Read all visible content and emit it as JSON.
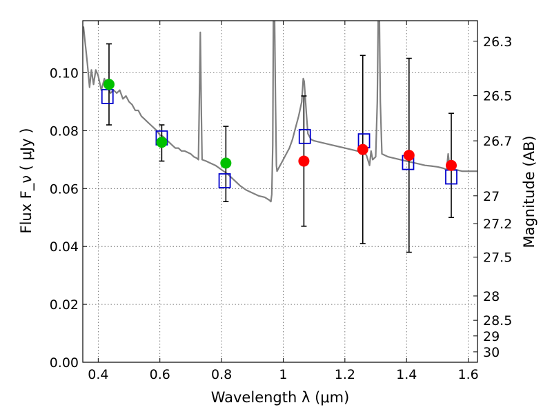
{
  "chart_data": {
    "type": "scatter",
    "xlabel": "Wavelength  λ (μm)",
    "ylabel": "Flux  F_ν ( μJy )",
    "ylabel_right": "Magnitude (AB)",
    "xlim": [
      0.35,
      1.63
    ],
    "ylim": [
      0.0,
      0.118
    ],
    "grid": true,
    "x_ticks": [
      {
        "value": 0.4,
        "label": "0.4"
      },
      {
        "value": 0.6,
        "label": "0.6"
      },
      {
        "value": 0.8,
        "label": "0.8"
      },
      {
        "value": 1.0,
        "label": "1"
      },
      {
        "value": 1.2,
        "label": "1.2"
      },
      {
        "value": 1.4,
        "label": "1.4"
      },
      {
        "value": 1.6,
        "label": "1.6"
      }
    ],
    "y_ticks": [
      {
        "value": 0.0,
        "label": "0.00"
      },
      {
        "value": 0.02,
        "label": "0.02"
      },
      {
        "value": 0.04,
        "label": "0.04"
      },
      {
        "value": 0.06,
        "label": "0.06"
      },
      {
        "value": 0.08,
        "label": "0.08"
      },
      {
        "value": 0.1,
        "label": "0.10"
      }
    ],
    "right_ticks": [
      {
        "flux": 0.1109,
        "label": "26.3"
      },
      {
        "flux": 0.0921,
        "label": "26.5"
      },
      {
        "flux": 0.0765,
        "label": "26.7"
      },
      {
        "flux": 0.0575,
        "label": "27"
      },
      {
        "flux": 0.0479,
        "label": "27.2"
      },
      {
        "flux": 0.0363,
        "label": "27.5"
      },
      {
        "flux": 0.0229,
        "label": "28"
      },
      {
        "flux": 0.0145,
        "label": "28.5"
      },
      {
        "flux": 0.0091,
        "label": "29"
      },
      {
        "flux": 0.0036,
        "label": "30"
      }
    ],
    "series": [
      {
        "kind": "spectrum",
        "color": "#808080",
        "points": [
          [
            0.352,
            0.116
          ],
          [
            0.36,
            0.108
          ],
          [
            0.365,
            0.103
          ],
          [
            0.372,
            0.095
          ],
          [
            0.378,
            0.101
          ],
          [
            0.385,
            0.096
          ],
          [
            0.392,
            0.101
          ],
          [
            0.4,
            0.099
          ],
          [
            0.41,
            0.094
          ],
          [
            0.42,
            0.098
          ],
          [
            0.43,
            0.095
          ],
          [
            0.44,
            0.093
          ],
          [
            0.45,
            0.094
          ],
          [
            0.46,
            0.093
          ],
          [
            0.47,
            0.094
          ],
          [
            0.48,
            0.091
          ],
          [
            0.49,
            0.092
          ],
          [
            0.5,
            0.09
          ],
          [
            0.51,
            0.089
          ],
          [
            0.52,
            0.087
          ],
          [
            0.53,
            0.087
          ],
          [
            0.54,
            0.085
          ],
          [
            0.55,
            0.084
          ],
          [
            0.56,
            0.083
          ],
          [
            0.57,
            0.082
          ],
          [
            0.58,
            0.081
          ],
          [
            0.59,
            0.08
          ],
          [
            0.6,
            0.0785
          ],
          [
            0.61,
            0.078
          ],
          [
            0.62,
            0.077
          ],
          [
            0.63,
            0.076
          ],
          [
            0.64,
            0.075
          ],
          [
            0.65,
            0.074
          ],
          [
            0.66,
            0.074
          ],
          [
            0.67,
            0.073
          ],
          [
            0.68,
            0.073
          ],
          [
            0.69,
            0.0725
          ],
          [
            0.7,
            0.072
          ],
          [
            0.71,
            0.071
          ],
          [
            0.72,
            0.0705
          ],
          [
            0.725,
            0.07
          ],
          [
            0.728,
            0.09
          ],
          [
            0.731,
            0.114
          ],
          [
            0.734,
            0.09
          ],
          [
            0.737,
            0.07
          ],
          [
            0.75,
            0.0695
          ],
          [
            0.76,
            0.069
          ],
          [
            0.78,
            0.068
          ],
          [
            0.8,
            0.0665
          ],
          [
            0.82,
            0.065
          ],
          [
            0.84,
            0.063
          ],
          [
            0.86,
            0.061
          ],
          [
            0.88,
            0.0595
          ],
          [
            0.9,
            0.0585
          ],
          [
            0.92,
            0.0575
          ],
          [
            0.94,
            0.057
          ],
          [
            0.955,
            0.056
          ],
          [
            0.96,
            0.0555
          ],
          [
            0.963,
            0.058
          ],
          [
            0.966,
            0.075
          ],
          [
            0.968,
            0.118
          ],
          [
            0.972,
            0.118
          ],
          [
            0.975,
            0.09
          ],
          [
            0.978,
            0.068
          ],
          [
            0.98,
            0.066
          ],
          [
            0.99,
            0.068
          ],
          [
            1.0,
            0.07
          ],
          [
            1.01,
            0.072
          ],
          [
            1.02,
            0.074
          ],
          [
            1.03,
            0.077
          ],
          [
            1.04,
            0.081
          ],
          [
            1.05,
            0.085
          ],
          [
            1.06,
            0.09
          ],
          [
            1.065,
            0.098
          ],
          [
            1.068,
            0.097
          ],
          [
            1.075,
            0.086
          ],
          [
            1.08,
            0.079
          ],
          [
            1.09,
            0.077
          ],
          [
            1.1,
            0.0765
          ],
          [
            1.12,
            0.076
          ],
          [
            1.14,
            0.0755
          ],
          [
            1.16,
            0.075
          ],
          [
            1.18,
            0.0745
          ],
          [
            1.2,
            0.074
          ],
          [
            1.22,
            0.0735
          ],
          [
            1.24,
            0.073
          ],
          [
            1.26,
            0.0725
          ],
          [
            1.27,
            0.0715
          ],
          [
            1.28,
            0.068
          ],
          [
            1.285,
            0.073
          ],
          [
            1.29,
            0.07
          ],
          [
            1.3,
            0.071
          ],
          [
            1.305,
            0.09
          ],
          [
            1.308,
            0.118
          ],
          [
            1.312,
            0.118
          ],
          [
            1.315,
            0.09
          ],
          [
            1.32,
            0.072
          ],
          [
            1.34,
            0.071
          ],
          [
            1.36,
            0.0705
          ],
          [
            1.38,
            0.07
          ],
          [
            1.4,
            0.0695
          ],
          [
            1.42,
            0.069
          ],
          [
            1.44,
            0.0685
          ],
          [
            1.46,
            0.068
          ],
          [
            1.48,
            0.0678
          ],
          [
            1.5,
            0.0675
          ],
          [
            1.52,
            0.067
          ],
          [
            1.53,
            0.0665
          ],
          [
            1.535,
            0.072
          ],
          [
            1.54,
            0.067
          ],
          [
            1.56,
            0.0665
          ],
          [
            1.58,
            0.066
          ],
          [
            1.6,
            0.066
          ],
          [
            1.62,
            0.066
          ],
          [
            1.63,
            0.066
          ]
        ]
      },
      {
        "kind": "observed-green",
        "color": "#00c000",
        "points": [
          {
            "x": 0.435,
            "y": 0.096,
            "err_low": 0.082,
            "err_high": 0.11
          },
          {
            "x": 0.606,
            "y": 0.076,
            "err_low": 0.0695,
            "err_high": 0.082
          },
          {
            "x": 0.814,
            "y": 0.0688,
            "err_low": 0.0555,
            "err_high": 0.0815
          }
        ]
      },
      {
        "kind": "observed-red",
        "color": "#ff0000",
        "points": [
          {
            "x": 1.067,
            "y": 0.0695,
            "err_low": 0.047,
            "err_high": 0.092
          },
          {
            "x": 1.258,
            "y": 0.0735,
            "err_low": 0.041,
            "err_high": 0.106
          },
          {
            "x": 1.408,
            "y": 0.0715,
            "err_low": 0.038,
            "err_high": 0.105
          },
          {
            "x": 1.545,
            "y": 0.068,
            "err_low": 0.05,
            "err_high": 0.086
          }
        ]
      },
      {
        "kind": "model-squares",
        "color": "#0000cc",
        "points": [
          {
            "x": 0.43,
            "y": 0.0918
          },
          {
            "x": 0.606,
            "y": 0.0775
          },
          {
            "x": 0.81,
            "y": 0.0627
          },
          {
            "x": 1.07,
            "y": 0.078
          },
          {
            "x": 1.262,
            "y": 0.0765
          },
          {
            "x": 1.405,
            "y": 0.069
          },
          {
            "x": 1.545,
            "y": 0.064
          }
        ]
      }
    ]
  }
}
